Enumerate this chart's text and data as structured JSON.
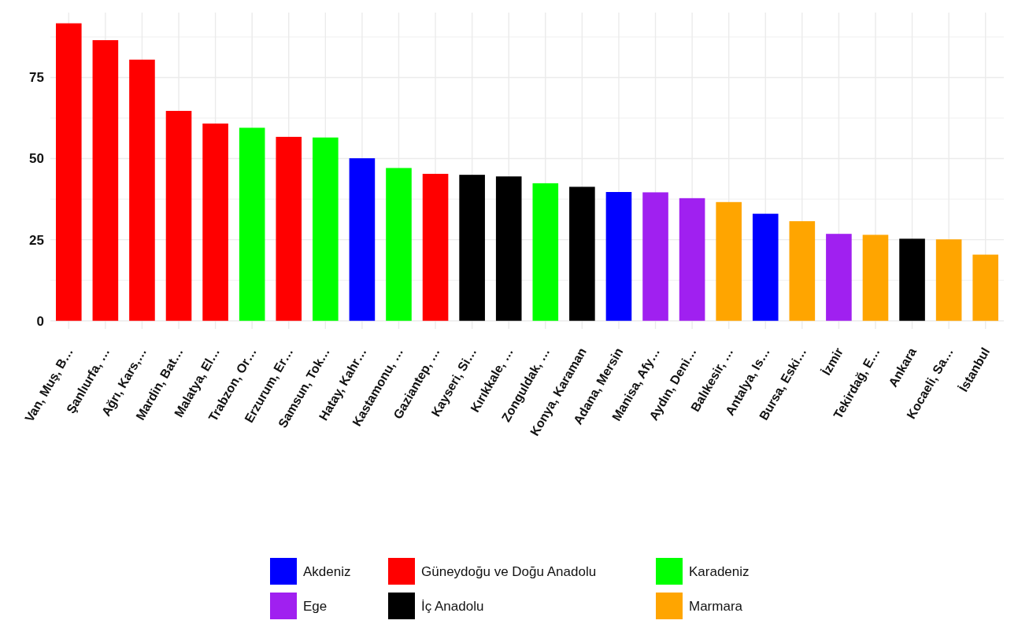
{
  "chart_data": {
    "type": "bar",
    "categories": [
      "Van, Muş, B…",
      "Şanlıurfa, …",
      "Ağrı, Kars,…",
      "Mardin, Bat…",
      "Malatya, El…",
      "Trabzon, Or…",
      "Erzurum, Er…",
      "Samsun, Tok…",
      "Hatay, Kahr…",
      "Kastamonu, …",
      "Gaziantep, …",
      "Kayseri, Si…",
      "Kırıkkale, …",
      "Zonguldak, …",
      "Konya, Karaman",
      "Adana, Mersin",
      "Manisa, Afy…",
      "Aydın, Deni…",
      "Balıkesir, …",
      "Antalya, Is…",
      "Bursa, Eski…",
      "İzmir",
      "Tekirdağ, E…",
      "Ankara",
      "Kocaeli, Sa…",
      "İstanbul"
    ],
    "series": [
      {
        "name": "Akdeniz",
        "color": "#0000ff",
        "values": [
          null,
          null,
          null,
          null,
          null,
          null,
          null,
          null,
          50.1,
          null,
          null,
          null,
          null,
          null,
          null,
          39.7,
          null,
          null,
          null,
          33.0,
          null,
          null,
          null,
          null,
          null,
          null
        ]
      },
      {
        "name": "Ege",
        "color": "#a020f0",
        "values": [
          null,
          null,
          null,
          null,
          null,
          null,
          null,
          null,
          null,
          null,
          null,
          null,
          null,
          null,
          null,
          null,
          39.6,
          37.8,
          null,
          null,
          null,
          26.8,
          null,
          null,
          null,
          null
        ]
      },
      {
        "name": "Güneydoğu ve Doğu Anadolu",
        "color": "#ff0000",
        "values": [
          91.7,
          86.5,
          80.5,
          64.7,
          60.8,
          null,
          56.7,
          null,
          null,
          null,
          45.3,
          null,
          null,
          null,
          null,
          null,
          null,
          null,
          null,
          null,
          null,
          null,
          null,
          null,
          null,
          null
        ]
      },
      {
        "name": "İç Anadolu",
        "color": "#000000",
        "values": [
          null,
          null,
          null,
          null,
          null,
          null,
          null,
          null,
          null,
          null,
          null,
          45.0,
          44.5,
          null,
          41.3,
          null,
          null,
          null,
          null,
          null,
          null,
          null,
          null,
          25.3,
          null,
          null
        ]
      },
      {
        "name": "Karadeniz",
        "color": "#00ff00",
        "values": [
          null,
          null,
          null,
          null,
          null,
          59.5,
          null,
          56.5,
          null,
          47.1,
          null,
          null,
          null,
          42.4,
          null,
          null,
          null,
          null,
          null,
          null,
          null,
          null,
          null,
          null,
          null,
          null
        ]
      },
      {
        "name": "Marmara",
        "color": "#ffa500",
        "values": [
          null,
          null,
          null,
          null,
          null,
          null,
          null,
          null,
          null,
          null,
          null,
          null,
          null,
          null,
          null,
          null,
          null,
          null,
          36.6,
          null,
          30.7,
          null,
          26.5,
          null,
          25.1,
          20.4
        ]
      }
    ],
    "ylim": [
      -2.5,
      95
    ],
    "yticks": [
      0,
      {
        "value": 12.5,
        "label": null
      },
      25,
      {
        "value": 37.5,
        "label": null
      },
      50,
      {
        "value": 62.5,
        "label": null
      },
      75,
      {
        "value": 87.5,
        "label": null
      }
    ],
    "grid": true,
    "legend": "bottom"
  }
}
